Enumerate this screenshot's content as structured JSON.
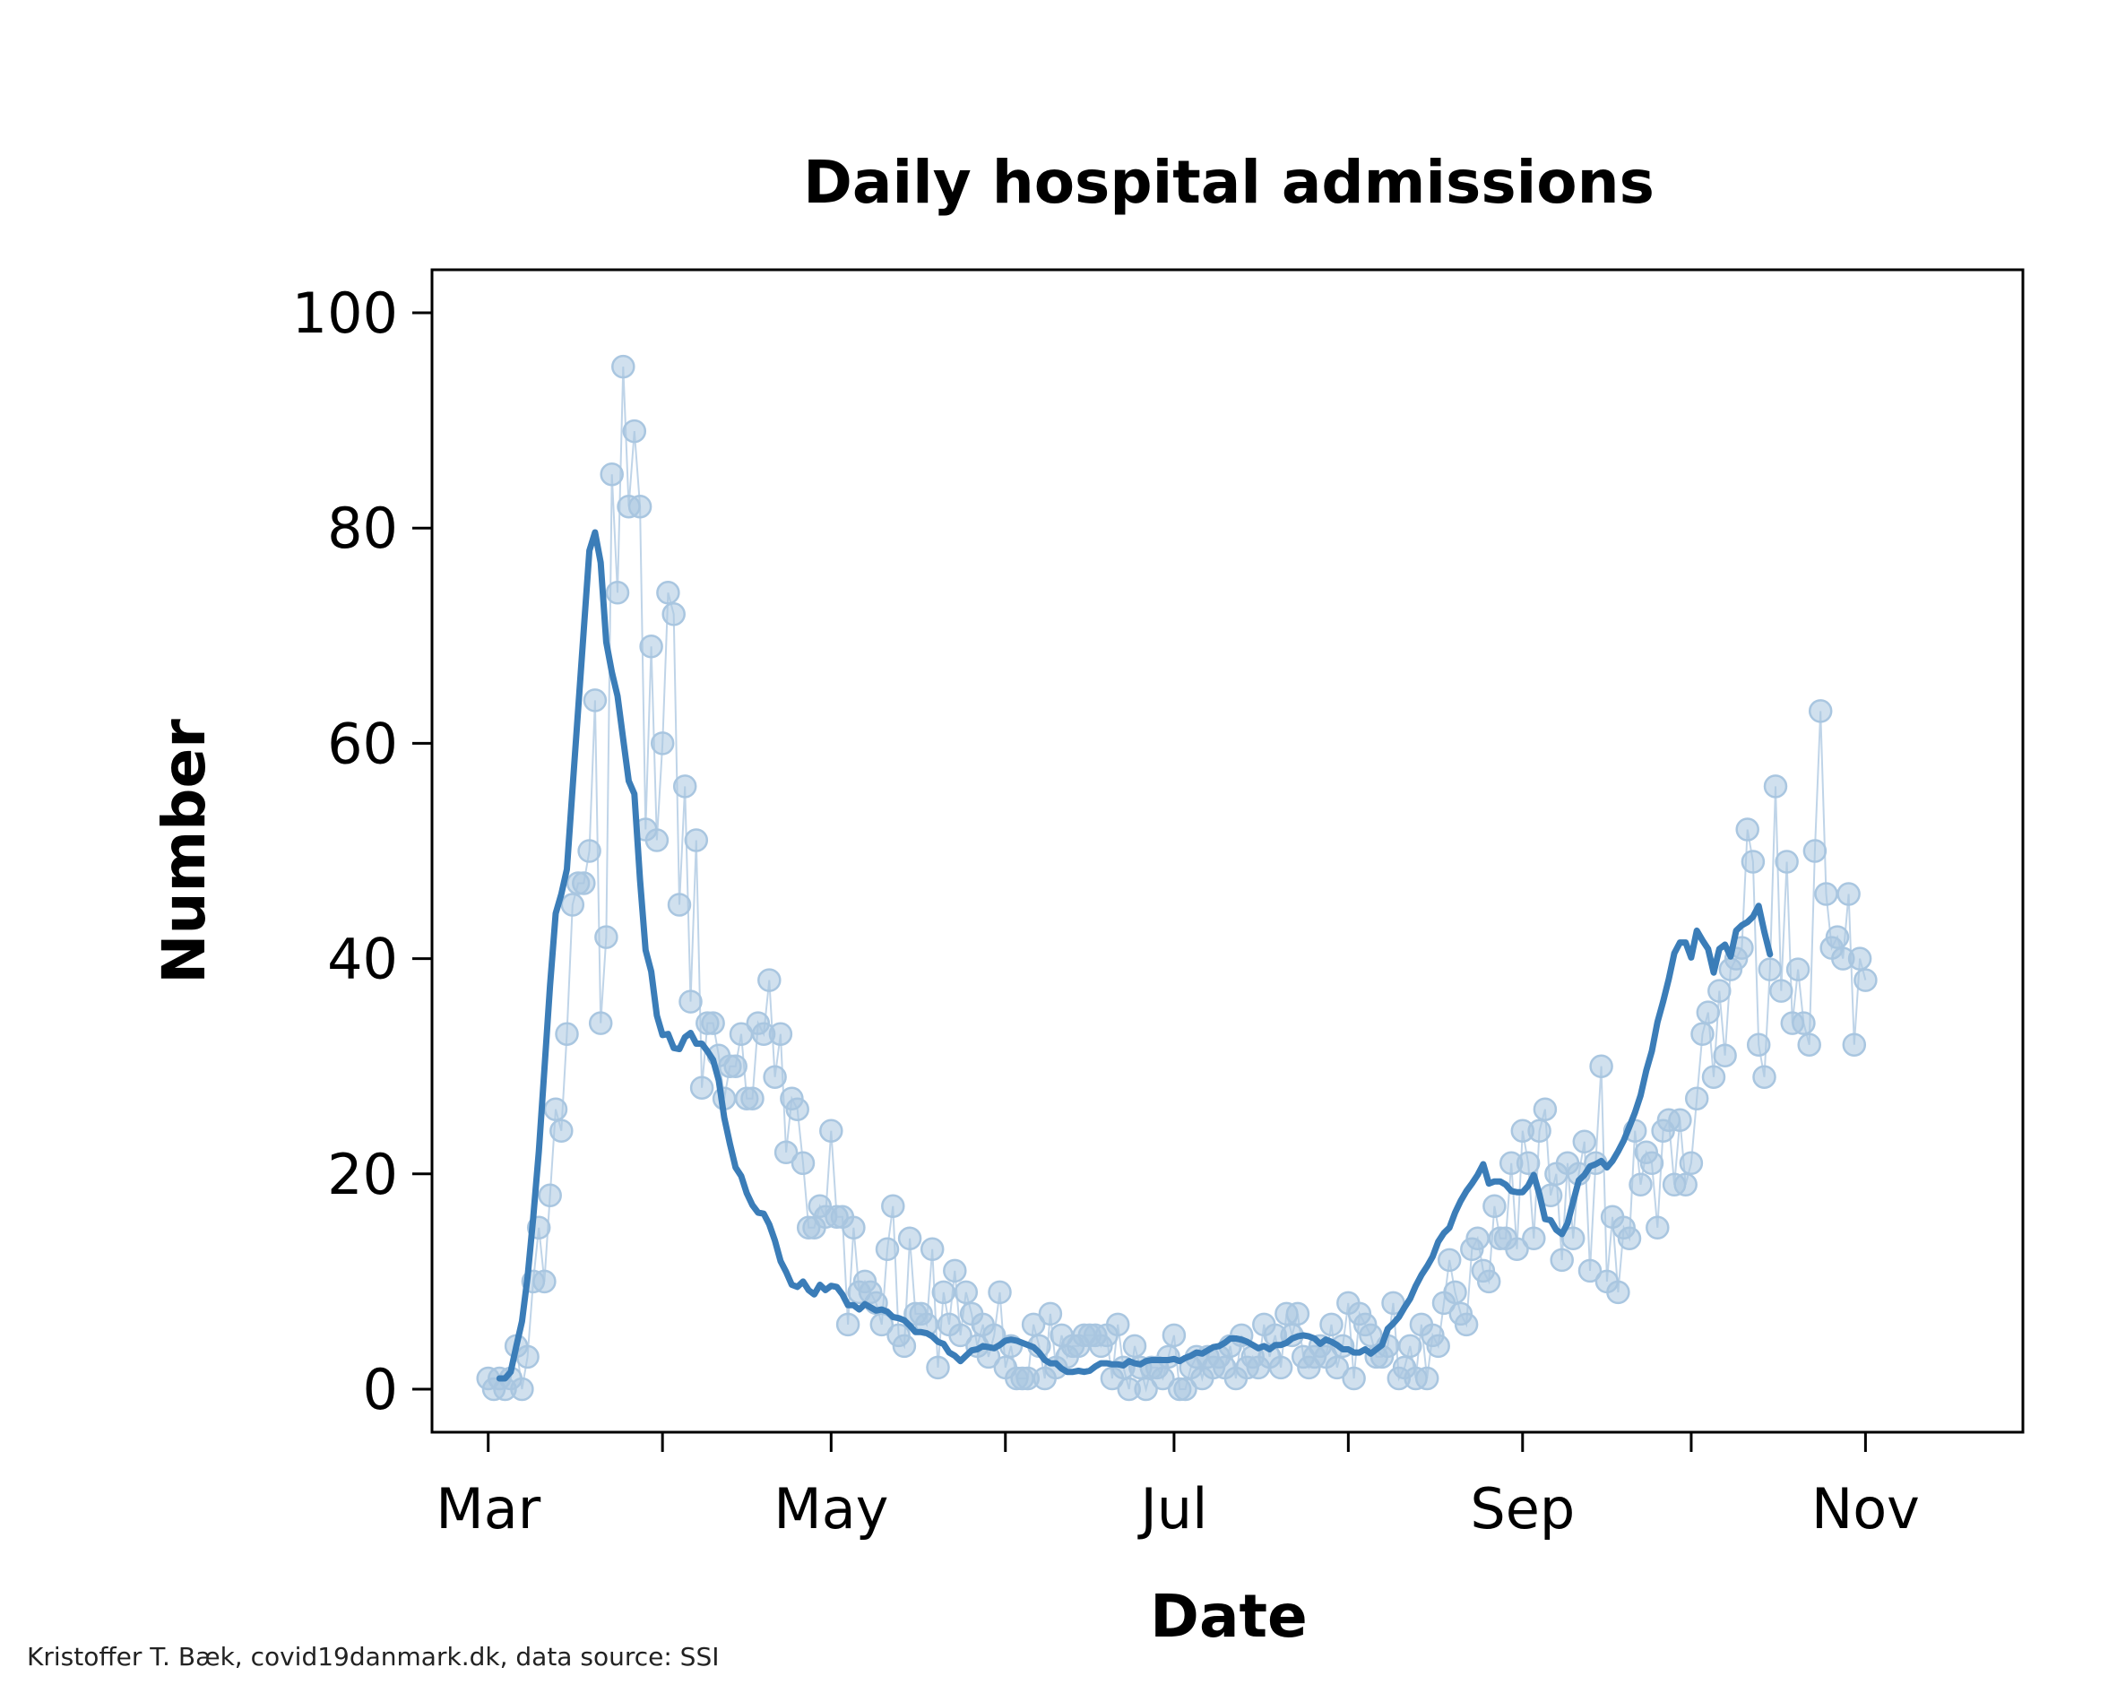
{
  "chart_data": {
    "type": "scatter",
    "title": "Daily hospital admissions",
    "xlabel": "Date",
    "ylabel": "Number",
    "year": 2020,
    "xlim": [
      "2020-02-20",
      "2020-11-29"
    ],
    "ylim": [
      -4,
      104
    ],
    "yticks": [
      0,
      20,
      40,
      60,
      80,
      100
    ],
    "xticks": [
      {
        "date": "2020-03-01",
        "label": "Mar"
      },
      {
        "date": "2020-04-01",
        "label": ""
      },
      {
        "date": "2020-05-01",
        "label": "May"
      },
      {
        "date": "2020-06-01",
        "label": ""
      },
      {
        "date": "2020-07-01",
        "label": "Jul"
      },
      {
        "date": "2020-08-01",
        "label": ""
      },
      {
        "date": "2020-09-01",
        "label": "Sep"
      },
      {
        "date": "2020-10-01",
        "label": ""
      },
      {
        "date": "2020-11-01",
        "label": "Nov"
      }
    ],
    "grid": false,
    "colors": {
      "daily": "#a9c6e0",
      "rolling": "#3b7db8"
    },
    "daily_start": "2020-03-01",
    "daily_values": [
      1,
      0,
      1,
      0,
      1,
      4,
      0,
      3,
      10,
      15,
      10,
      18,
      26,
      24,
      33,
      45,
      47,
      47,
      50,
      64,
      34,
      42,
      85,
      74,
      95,
      82,
      89,
      82,
      52,
      69,
      51,
      60,
      74,
      72,
      45,
      56,
      36,
      51,
      28,
      34,
      34,
      31,
      27,
      30,
      30,
      33,
      27,
      27,
      34,
      33,
      38,
      29,
      33,
      22,
      27,
      26,
      21,
      15,
      15,
      17,
      16,
      24,
      16,
      16,
      6,
      15,
      9,
      10,
      9,
      8,
      6,
      13,
      17,
      5,
      4,
      14,
      7,
      7,
      6,
      13,
      2,
      9,
      6,
      11,
      5,
      9,
      7,
      4,
      6,
      3,
      5,
      9,
      2,
      4,
      1,
      1,
      1,
      6,
      4,
      1,
      7,
      2,
      5,
      3,
      4,
      4,
      5,
      5,
      5,
      4,
      5,
      1,
      6,
      2,
      0,
      4,
      2,
      0,
      2,
      2,
      1,
      3,
      5,
      0,
      0,
      2,
      3,
      1,
      3,
      2,
      3,
      2,
      4,
      1,
      5,
      2,
      3,
      2,
      6,
      3,
      5,
      2,
      7,
      5,
      7,
      3,
      2,
      3,
      4,
      3,
      6,
      2,
      4,
      8,
      1,
      7,
      6,
      5,
      3,
      3,
      4,
      8,
      1,
      2,
      4,
      1,
      6,
      1,
      5,
      4,
      8,
      12,
      9,
      7,
      6,
      13,
      14,
      11,
      10,
      17,
      14,
      14,
      21,
      13,
      24,
      21,
      14,
      24,
      26,
      18,
      20,
      12,
      21,
      14,
      20,
      23,
      11,
      21,
      30,
      10,
      16,
      9,
      15,
      14,
      24,
      19,
      22,
      21,
      15,
      24,
      25,
      19,
      25,
      19,
      21,
      27,
      33,
      35,
      29,
      37,
      31,
      39,
      40,
      41,
      52,
      49,
      32,
      29,
      39,
      56,
      37,
      49,
      34,
      39,
      34,
      32,
      50,
      63,
      46,
      41,
      42,
      40,
      46,
      32,
      40,
      38
    ],
    "rolling_start": "2020-03-03",
    "rolling_values": [
      1.0,
      1.0,
      1.6,
      4.0,
      6.3,
      10.4,
      15.9,
      22.1,
      29.7,
      37.5,
      44.2,
      46.0,
      48.3,
      55.8,
      63.2,
      70.5,
      77.9,
      79.6,
      76.8,
      69.4,
      66.6,
      64.4,
      60.4,
      56.5,
      55.3,
      47.3,
      40.8,
      38.8,
      34.7,
      32.9,
      33.0,
      31.7,
      31.6,
      32.7,
      33.1,
      32.1,
      32.1,
      31.4,
      30.6,
      28.7,
      25.2,
      22.8,
      20.6,
      19.8,
      18.2,
      17.1,
      16.4,
      16.3,
      15.3,
      13.8,
      11.9,
      10.9,
      9.7,
      9.5,
      10.0,
      9.2,
      8.8,
      9.7,
      9.2,
      9.6,
      9.5,
      8.8,
      7.8,
      7.8,
      7.4,
      7.9,
      7.6,
      7.3,
      7.4,
      7.2,
      6.7,
      6.6,
      6.4,
      5.9,
      5.3,
      5.3,
      5.2,
      4.9,
      4.4,
      4.2,
      3.4,
      3.1,
      2.6,
      3.1,
      3.6,
      3.7,
      4.0,
      3.9,
      3.8,
      4.1,
      4.5,
      4.6,
      4.5,
      4.3,
      4.1,
      3.9,
      3.4,
      2.7,
      2.4,
      2.4,
      1.9,
      1.6,
      1.6,
      1.7,
      1.6,
      1.7,
      2.1,
      2.4,
      2.4,
      2.3,
      2.3,
      2.2,
      2.6,
      2.4,
      2.3,
      2.6,
      2.7,
      2.7,
      2.7,
      2.7,
      2.8,
      2.6,
      2.9,
      3.1,
      3.4,
      3.3,
      3.6,
      3.9,
      4.0,
      4.3,
      4.7,
      4.7,
      4.6,
      4.4,
      4.1,
      3.8,
      4.0,
      3.7,
      4.1,
      4.1,
      4.3,
      4.7,
      4.9,
      5.0,
      4.9,
      4.7,
      4.2,
      4.6,
      4.4,
      4.1,
      3.7,
      3.7,
      3.4,
      3.4,
      3.7,
      3.3,
      3.7,
      4.1,
      5.6,
      6.1,
      6.7,
      7.6,
      8.4,
      9.6,
      10.6,
      11.4,
      12.3,
      13.7,
      14.5,
      15.0,
      16.4,
      17.5,
      18.4,
      19.1,
      19.9,
      20.9,
      19.1,
      19.3,
      19.3,
      19.0,
      18.4,
      18.3,
      18.3,
      18.9,
      19.9,
      18.1,
      15.8,
      15.7,
      14.8,
      14.4,
      15.4,
      17.4,
      19.4,
      19.9,
      20.7,
      20.9,
      21.2,
      20.6,
      21.2,
      22.1,
      23.1,
      24.4,
      25.7,
      27.3,
      29.6,
      31.4,
      34.1,
      36.0,
      38.1,
      40.5,
      41.5,
      41.5,
      40.1,
      42.6,
      41.7,
      40.9,
      38.7,
      40.9,
      41.3,
      40.2,
      42.6,
      43.1,
      43.4,
      43.9,
      44.9,
      42.5,
      40.4
    ]
  },
  "caption": "Kristoffer T. Bæk, covid19danmark.dk, data source: SSI"
}
